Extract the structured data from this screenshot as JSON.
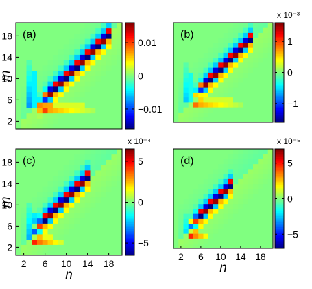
{
  "chart_data": [
    {
      "type": "heatmap",
      "panel_label": "(a)",
      "xlabel": "",
      "ylabel": "m",
      "x_ticks": [],
      "y_ticks": [
        2,
        6,
        10,
        14,
        18
      ],
      "x_range": [
        1,
        20
      ],
      "y_range": [
        1,
        20
      ],
      "colorbar": {
        "range": [
          -0.016,
          0.016
        ],
        "ticks": [
          0.01,
          0,
          -0.01
        ],
        "tick_labels": [
          "0.01",
          "0",
          "−0.01"
        ],
        "exponent": ""
      },
      "ridge": {
        "n_start": 5,
        "n_end": 18,
        "offset": 0,
        "amplitude": -1.0
      },
      "features": {
        "left_col_n": 3,
        "left_col_m_range": [
          5,
          13
        ],
        "left_col_value": -0.45,
        "bottom_row_m": 4,
        "bottom_row_n_range": [
          5,
          15
        ],
        "bottom_row_value": 0.5
      }
    },
    {
      "type": "heatmap",
      "panel_label": "(b)",
      "xlabel": "",
      "ylabel": "",
      "x_ticks": [],
      "y_ticks": [],
      "x_range": [
        1,
        20
      ],
      "y_range": [
        1,
        20
      ],
      "colorbar": {
        "range": [
          -0.0016,
          0.0016
        ],
        "ticks": [
          1,
          0,
          -1
        ],
        "tick_labels": [
          "1",
          "0",
          "−1"
        ],
        "exponent": "x 10⁻³"
      },
      "ridge": {
        "n_start": 5,
        "n_end": 16,
        "offset": 1,
        "amplitude": -0.95
      },
      "features": {
        "left_col_n": 3,
        "left_col_m_range": [
          5,
          12
        ],
        "left_col_value": -0.35,
        "bottom_row_m": 4,
        "bottom_row_n_range": [
          5,
          14
        ],
        "bottom_row_value": 0.45
      }
    },
    {
      "type": "heatmap",
      "panel_label": "(c)",
      "xlabel": "n",
      "ylabel": "m",
      "x_ticks": [
        2,
        6,
        10,
        14,
        18
      ],
      "y_ticks": [
        2,
        6,
        10,
        14,
        18
      ],
      "x_range": [
        1,
        20
      ],
      "y_range": [
        1,
        20
      ],
      "colorbar": {
        "range": [
          -6.5,
          6.5
        ],
        "ticks": [
          5,
          0,
          -5
        ],
        "tick_labels": [
          "5",
          "0",
          "−5"
        ],
        "exponent": "x 10⁻⁴"
      },
      "ridge": {
        "n_start": 4,
        "n_end": 14,
        "offset": 1,
        "amplitude": -1.0
      },
      "features": {
        "left_col_n": 3,
        "left_col_m_range": [
          4,
          10
        ],
        "left_col_value": -0.4,
        "bottom_row_m": 3,
        "bottom_row_n_range": [
          4,
          9
        ],
        "bottom_row_value": 0.6
      }
    },
    {
      "type": "heatmap",
      "panel_label": "(d)",
      "xlabel": "n",
      "ylabel": "",
      "x_ticks": [
        2,
        6,
        10,
        14,
        18
      ],
      "y_ticks": [],
      "x_range": [
        1,
        20
      ],
      "y_range": [
        1,
        20
      ],
      "colorbar": {
        "range": [
          -7,
          7
        ],
        "ticks": [
          5,
          0,
          -5
        ],
        "tick_labels": [
          "5",
          "0",
          "−5"
        ],
        "exponent": "x 10⁻⁵"
      },
      "ridge": {
        "n_start": 4,
        "n_end": 12,
        "offset": 1,
        "amplitude": -1.0
      },
      "features": {
        "left_col_n": 3,
        "left_col_m_range": [
          4,
          7
        ],
        "left_col_value": -0.3,
        "bottom_row_m": 3,
        "bottom_row_n_range": [
          4,
          7
        ],
        "bottom_row_value": 0.6
      }
    }
  ],
  "colors": {
    "background_field": "#7df57a",
    "colormap": "jet"
  }
}
